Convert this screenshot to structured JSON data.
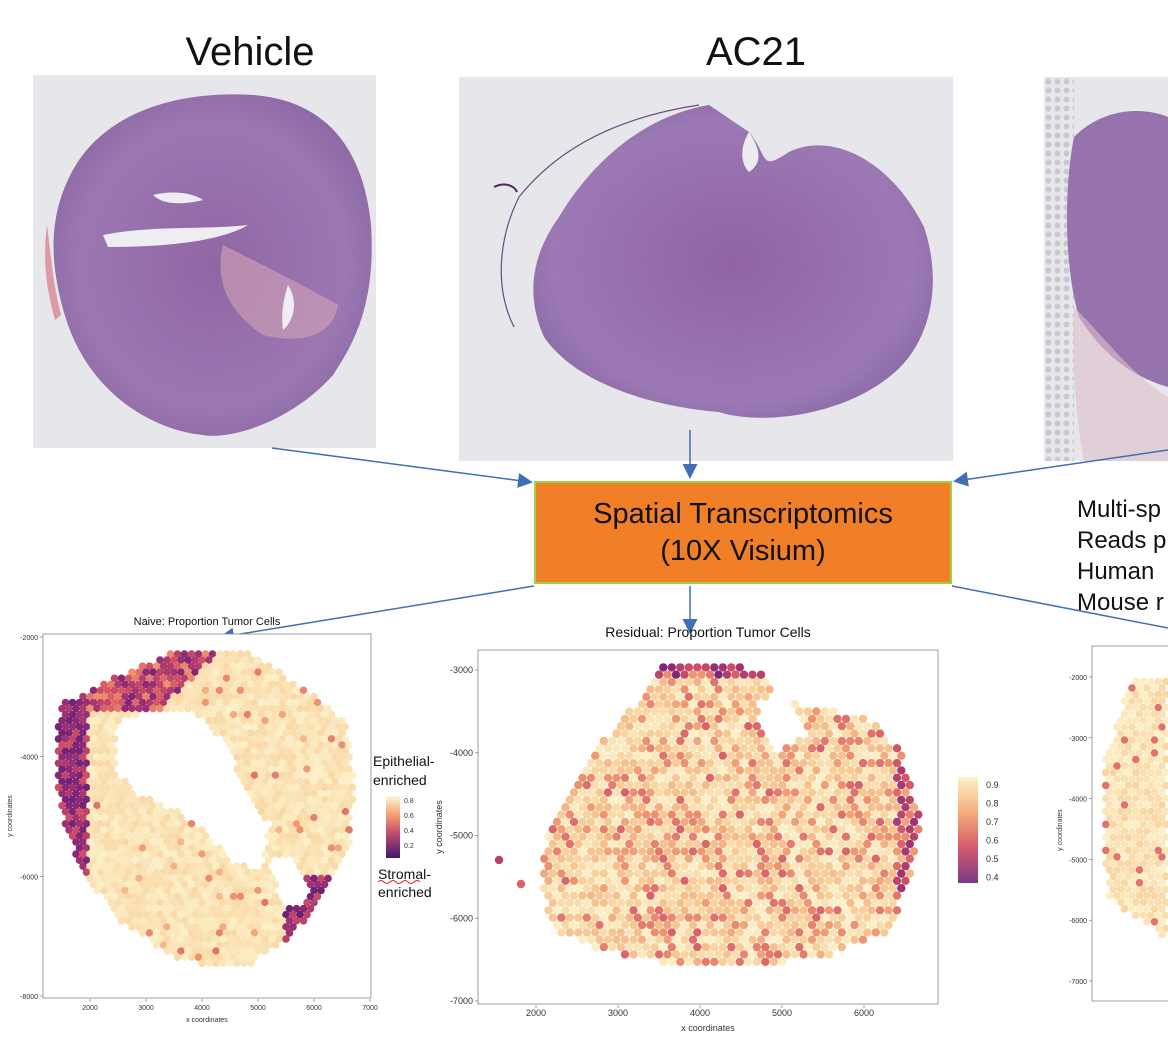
{
  "top": {
    "vehicle_label": "Vehicle",
    "ac21_label": "AC21"
  },
  "center_box": {
    "line1": "Spatial Transcriptomics",
    "line2": "(10X Visium)"
  },
  "side_info": {
    "lines": [
      "Multi-sp",
      "Reads p",
      "Human",
      "Mouse r"
    ]
  },
  "legend": {
    "top_label_1": "Epithelial-",
    "top_label_2": "enriched",
    "bottom_label_1": "Stromal-",
    "bottom_label_2": "enriched",
    "ticks": [
      "0.8",
      "0.6",
      "0.4",
      "0.2"
    ]
  },
  "colors": {
    "box_fill": "#f07f27",
    "box_border": "#9bd345",
    "arrow": "#3f6fb4",
    "tissue": "#8d6aa8",
    "slide_bg": "#e7e6ea"
  },
  "chart_data": [
    {
      "type": "scatter",
      "title": "Naive: Proportion Tumor Cells",
      "xlabel": "x coordinates",
      "ylabel": "y coordinates",
      "x_ticks": [
        "2000",
        "3000",
        "4000",
        "5000",
        "6000",
        "7000"
      ],
      "y_ticks": [
        "-2000",
        "-4000",
        "-6000",
        "-8000"
      ],
      "xlim": [
        1200,
        7000
      ],
      "ylim": [
        -8000,
        -1700
      ],
      "colorbar_ticks": [
        "0.8",
        "0.6",
        "0.4",
        "0.2"
      ]
    },
    {
      "type": "scatter",
      "title": "Residual: Proportion Tumor Cells",
      "xlabel": "x coordinates",
      "ylabel": "y coordinates",
      "x_ticks": [
        "2000",
        "3000",
        "4000",
        "5000",
        "6000"
      ],
      "y_ticks": [
        "-3000",
        "-4000",
        "-5000",
        "-6000",
        "-7000"
      ],
      "xlim": [
        1000,
        7000
      ],
      "ylim": [
        -7000,
        -2600
      ],
      "colorbar_ticks": [
        "0.9",
        "0.8",
        "0.7",
        "0.6",
        "0.5",
        "0.4"
      ]
    },
    {
      "type": "scatter",
      "title": "",
      "xlabel": "",
      "ylabel": "y coordinates",
      "y_ticks": [
        "-2000",
        "-3000",
        "-4000",
        "-5000",
        "-6000",
        "-7000"
      ],
      "xlim": [
        1000,
        7000
      ],
      "ylim": [
        -7300,
        -1400
      ]
    }
  ]
}
